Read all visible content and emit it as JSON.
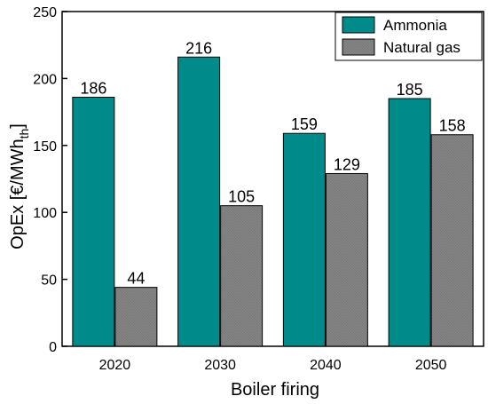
{
  "chart_data": {
    "type": "bar",
    "categories": [
      "2020",
      "2030",
      "2040",
      "2050"
    ],
    "series": [
      {
        "name": "Ammonia",
        "values": [
          186,
          216,
          159,
          185
        ],
        "color": "#008B8B"
      },
      {
        "name": "Natural gas",
        "values": [
          44,
          105,
          129,
          158
        ],
        "color": "#808080"
      }
    ],
    "xlabel": "Boiler firing",
    "ylabel": "OpEx [€/MWh",
    "ylabel_subscript": "th",
    "ylabel_suffix": "]",
    "ylim": [
      0,
      250
    ],
    "yticks": [
      0,
      50,
      100,
      150,
      200,
      250
    ],
    "grid": false,
    "legend_position": "top-right",
    "data_labels": true
  }
}
